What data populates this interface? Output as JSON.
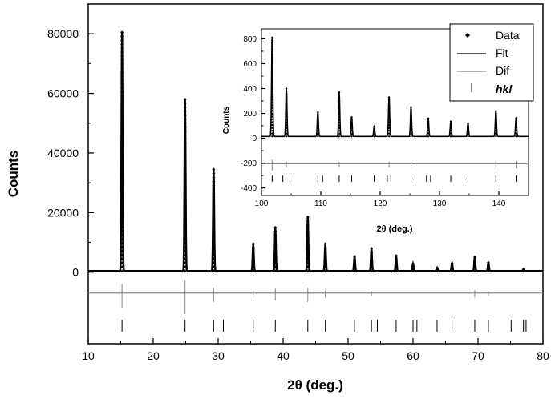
{
  "chart_data": [
    {
      "type": "scatter",
      "xlabel": "2θ (deg.)",
      "ylabel": "Counts",
      "xlim": [
        10,
        80
      ],
      "ylim": [
        -24000,
        90000
      ],
      "x_ticks": [
        "10",
        "20",
        "30",
        "40",
        "50",
        "60",
        "70",
        "80"
      ],
      "y_ticks": [
        "0",
        "20000",
        "40000",
        "60000",
        "80000"
      ],
      "x_tick_values": [
        10,
        20,
        30,
        40,
        50,
        60,
        70,
        80
      ],
      "y_tick_values": [
        0,
        20000,
        40000,
        60000,
        80000
      ],
      "baseline": 400,
      "peaks": {
        "x": [
          15.2,
          24.9,
          29.3,
          35.4,
          38.8,
          43.8,
          46.5,
          51.0,
          53.6,
          57.4,
          60.0,
          63.7,
          66.0,
          69.5,
          71.6,
          77.0
        ],
        "y": [
          80500,
          58000,
          34500,
          9500,
          15000,
          18500,
          9500,
          5300,
          8000,
          5500,
          2800,
          1500,
          3000,
          5000,
          3200,
          1000
        ]
      },
      "dif_offset": -7000,
      "dif_spikes": {
        "x": [
          15.2,
          24.9,
          29.3,
          35.4,
          38.8,
          43.8,
          46.5,
          53.6,
          69.5,
          71.6
        ],
        "y": [
          -12000,
          -14000,
          -10000,
          -8500,
          -9500,
          -10000,
          -8500,
          -8000,
          -8500,
          -8000
        ]
      },
      "hkl_positions": [
        15.2,
        24.9,
        29.3,
        30.8,
        35.4,
        38.8,
        43.8,
        46.5,
        51.0,
        53.6,
        54.5,
        57.4,
        60.0,
        60.6,
        63.7,
        66.0,
        69.5,
        71.6,
        75.1,
        77.0,
        77.4
      ],
      "hkl_level": [
        -20000,
        -16000
      ]
    },
    {
      "type": "scatter",
      "xlabel": "2θ (deg.)",
      "ylabel": "Counts",
      "xlim": [
        100,
        145
      ],
      "ylim": [
        -460,
        880
      ],
      "x_ticks": [
        "100",
        "110",
        "120",
        "130",
        "140"
      ],
      "y_ticks": [
        "-400",
        "-200",
        "0",
        "200",
        "400",
        "600",
        "800"
      ],
      "x_tick_values": [
        100,
        110,
        120,
        130,
        140
      ],
      "y_tick_values": [
        -400,
        -200,
        0,
        200,
        400,
        600,
        800
      ],
      "baseline": 15,
      "peaks": {
        "x": [
          101.8,
          104.2,
          109.5,
          113.1,
          115.2,
          119.0,
          121.5,
          125.2,
          128.1,
          131.9,
          134.8,
          139.5,
          142.9
        ],
        "y": [
          810,
          400,
          210,
          370,
          170,
          95,
          330,
          250,
          160,
          135,
          120,
          220,
          160
        ]
      },
      "dif_offset": -205,
      "dif_spikes": {
        "x": [
          101.8,
          104.2,
          113.1,
          121.5,
          125.2,
          139.5,
          142.9
        ],
        "y": [
          -260,
          -235,
          -230,
          -235,
          -230,
          -250,
          -240
        ]
      },
      "hkl_positions": [
        101.8,
        103.6,
        104.8,
        109.5,
        110.3,
        113.1,
        115.2,
        119.0,
        121.2,
        121.8,
        125.2,
        127.8,
        128.5,
        131.9,
        134.8,
        139.5,
        142.9
      ],
      "hkl_level": [
        -350,
        -300
      ],
      "legend": {
        "placement": "top-right",
        "entries": [
          "Data",
          "Fit",
          "Dif",
          "hkl"
        ]
      }
    }
  ]
}
